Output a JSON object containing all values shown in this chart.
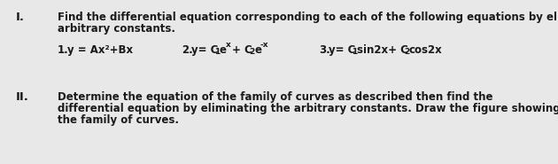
{
  "background_color": "#e8e8e8",
  "text_color": "#1a1a1a",
  "roman_I": "I.",
  "roman_II": "II.",
  "section_I_line1": "Find the differential equation corresponding to each of the following equations by eliminating the",
  "section_I_line2": "arbitrary constants.",
  "eq1_label": "1.",
  "eq1_text": "y = Ax²+Bx",
  "eq2_label": "2.",
  "eq2_part1": "y= C",
  "eq2_sub1": "1",
  "eq2_part2": "e",
  "eq2_sup1": "x",
  "eq2_part3": "+ C",
  "eq2_sub2": "2",
  "eq2_part4": "e",
  "eq2_sup2": "-x",
  "eq3_label": "3.",
  "eq3_part1": "y= C",
  "eq3_sub1": "1",
  "eq3_part2": "sin2x+ C",
  "eq3_sub2": "2",
  "eq3_part3": "cos2x",
  "section_II_line1": "Determine the equation of the family of curves as described then find the",
  "section_II_line2": "differential equation by eliminating the arbitrary constants. Draw the figure showing",
  "section_II_line3": "the family of curves.",
  "font_size_roman": 9.5,
  "font_size_body": 8.5,
  "font_size_eq": 8.5,
  "font_size_sub": 6.5
}
